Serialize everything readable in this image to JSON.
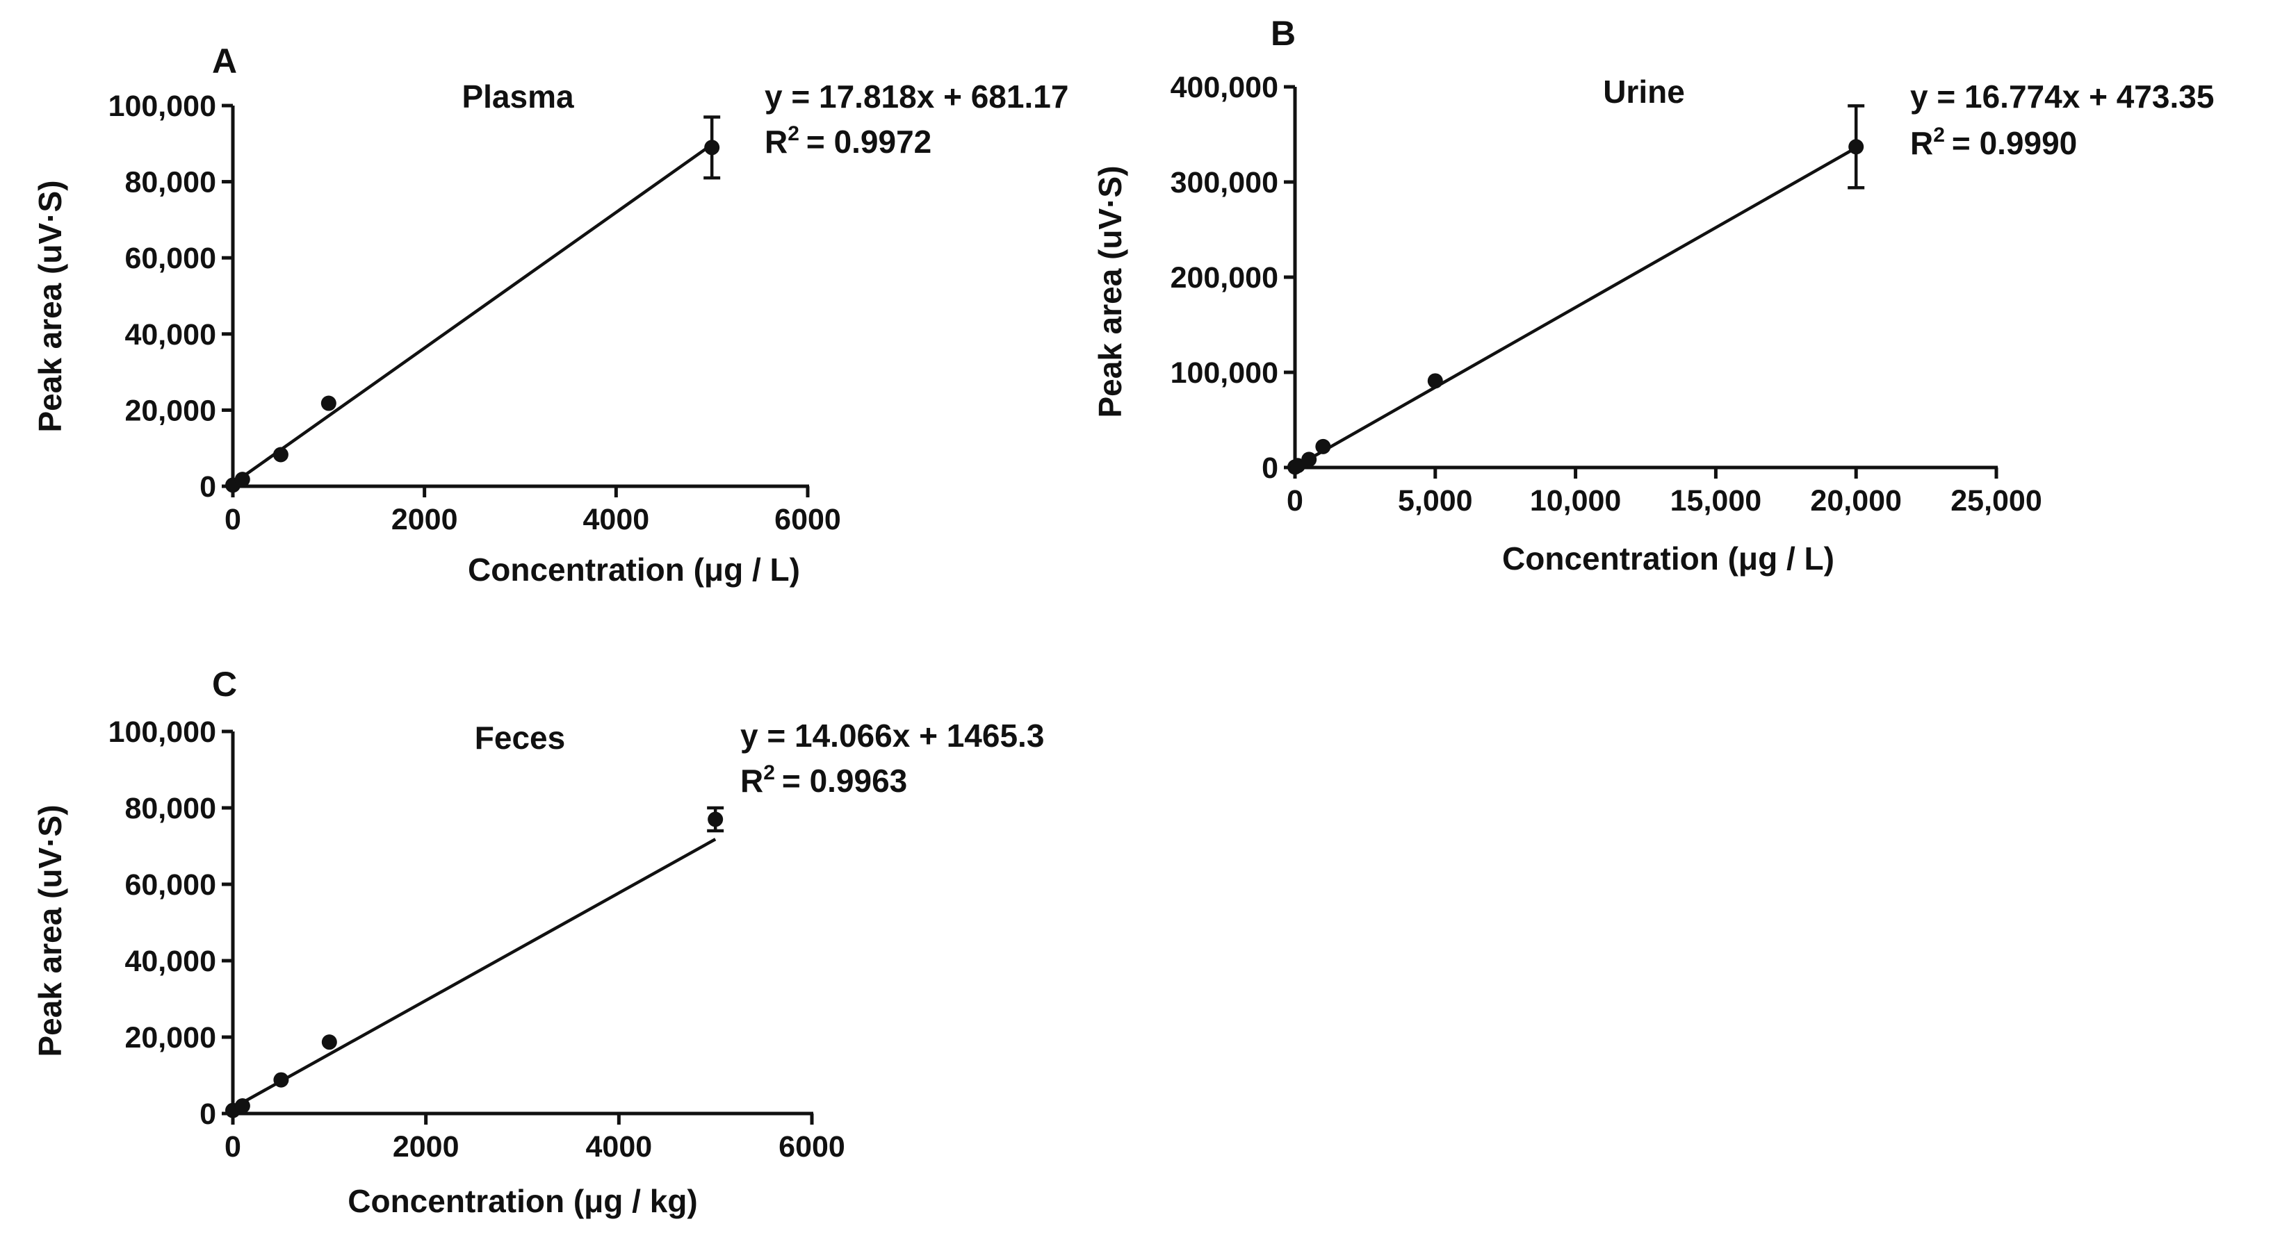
{
  "chart_data": [
    {
      "panel": "A",
      "type": "scatter",
      "title": "Plasma",
      "xlabel": "Concentration (μg / L)",
      "ylabel": "Peak area (uV·S)",
      "xlim": [
        0,
        6000
      ],
      "ylim": [
        0,
        100000
      ],
      "xticks": [
        "0",
        "2000",
        "4000",
        "6000"
      ],
      "yticks": [
        "0",
        "20,000",
        "40,000",
        "60,000",
        "80,000",
        "100,000"
      ],
      "equation": "y = 17.818x + 681.17",
      "r2_prefix": "R",
      "r2_sup": "2",
      "r2_value": "= 0.9972",
      "slope": 17.818,
      "intercept": 681.17,
      "points": [
        {
          "x": 0,
          "y": 300
        },
        {
          "x": 100,
          "y": 1800
        },
        {
          "x": 500,
          "y": 8300
        },
        {
          "x": 1000,
          "y": 21800
        },
        {
          "x": 5000,
          "y": 89000,
          "err": 8000
        }
      ]
    },
    {
      "panel": "B",
      "type": "scatter",
      "title": "Urine",
      "xlabel": "Concentration (μg / L)",
      "ylabel": "Peak area (uV·S)",
      "xlim": [
        0,
        25000
      ],
      "ylim": [
        0,
        400000
      ],
      "xticks": [
        "0",
        "5,000",
        "10,000",
        "15,000",
        "20,000",
        "25,000"
      ],
      "yticks": [
        "0",
        "100,000",
        "200,000",
        "300,000",
        "400,000"
      ],
      "equation": "y = 16.774x + 473.35",
      "r2_prefix": "R",
      "r2_sup": "2",
      "r2_value": "= 0.9990",
      "slope": 16.774,
      "intercept": 473.35,
      "points": [
        {
          "x": 0,
          "y": 500
        },
        {
          "x": 100,
          "y": 2000
        },
        {
          "x": 500,
          "y": 8500
        },
        {
          "x": 1000,
          "y": 22000
        },
        {
          "x": 5000,
          "y": 91000
        },
        {
          "x": 20000,
          "y": 337000,
          "err": 43000
        }
      ]
    },
    {
      "panel": "C",
      "type": "scatter",
      "title": "Feces",
      "xlabel": "Concentration (μg / kg)",
      "ylabel": "Peak area (uV·S)",
      "xlim": [
        0,
        6000
      ],
      "ylim": [
        0,
        100000
      ],
      "xticks": [
        "0",
        "2000",
        "4000",
        "6000"
      ],
      "yticks": [
        "0",
        "20,000",
        "40,000",
        "60,000",
        "80,000",
        "100,000"
      ],
      "equation": "y = 14.066x + 1465.3",
      "r2_prefix": "R",
      "r2_sup": "2",
      "r2_value": "= 0.9963",
      "slope": 14.066,
      "intercept": 1465.3,
      "points": [
        {
          "x": 0,
          "y": 800
        },
        {
          "x": 100,
          "y": 2000
        },
        {
          "x": 500,
          "y": 8800
        },
        {
          "x": 1000,
          "y": 18700
        },
        {
          "x": 5000,
          "y": 77000,
          "err": 3000
        }
      ]
    }
  ]
}
